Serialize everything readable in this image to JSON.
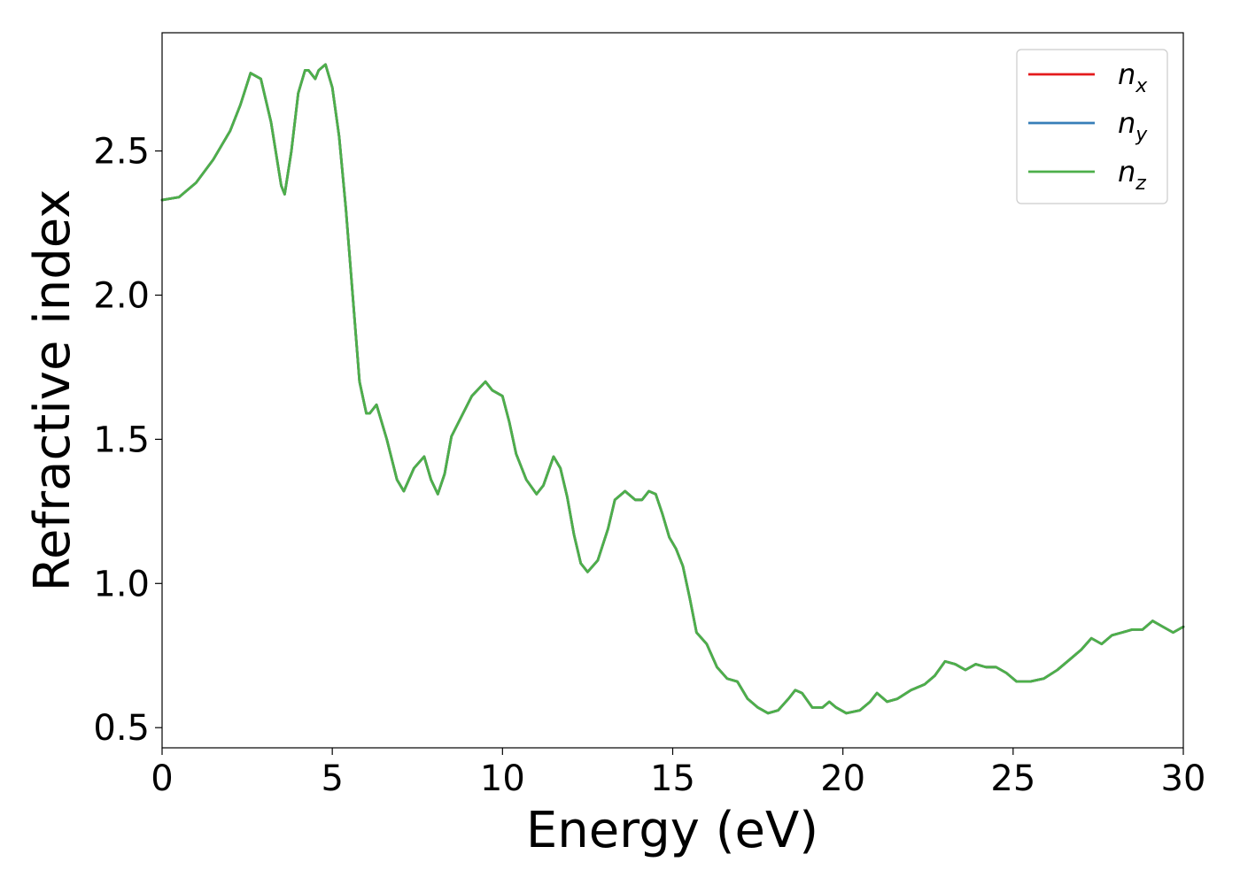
{
  "chart_data": {
    "type": "line",
    "xlabel": "Energy (eV)",
    "ylabel": "Refractive index",
    "xlim": [
      0,
      30
    ],
    "ylim": [
      0.43,
      2.91
    ],
    "xticks": [
      0,
      5,
      10,
      15,
      20,
      25,
      30
    ],
    "xtick_labels": [
      "0",
      "5",
      "10",
      "15",
      "20",
      "25",
      "30"
    ],
    "yticks": [
      0.5,
      1.0,
      1.5,
      2.0,
      2.5
    ],
    "ytick_labels": [
      "0.5",
      "1.0",
      "1.5",
      "2.0",
      "2.5"
    ],
    "grid": false,
    "legend_position": "top-right",
    "x": [
      0.0,
      0.5,
      1.0,
      1.5,
      2.0,
      2.3,
      2.6,
      2.9,
      3.2,
      3.5,
      3.6,
      3.8,
      4.0,
      4.2,
      4.3,
      4.5,
      4.6,
      4.8,
      5.0,
      5.2,
      5.4,
      5.6,
      5.8,
      6.0,
      6.1,
      6.3,
      6.6,
      6.9,
      7.1,
      7.4,
      7.7,
      7.9,
      8.1,
      8.3,
      8.5,
      8.8,
      9.1,
      9.5,
      9.7,
      10.0,
      10.2,
      10.4,
      10.7,
      11.0,
      11.2,
      11.5,
      11.7,
      11.9,
      12.1,
      12.3,
      12.5,
      12.8,
      13.1,
      13.3,
      13.6,
      13.9,
      14.1,
      14.3,
      14.5,
      14.7,
      14.9,
      15.1,
      15.3,
      15.5,
      15.7,
      16.0,
      16.3,
      16.6,
      16.9,
      17.2,
      17.5,
      17.8,
      18.1,
      18.4,
      18.6,
      18.8,
      19.1,
      19.4,
      19.6,
      19.8,
      20.1,
      20.5,
      20.8,
      21.0,
      21.3,
      21.6,
      22.0,
      22.4,
      22.7,
      23.0,
      23.3,
      23.6,
      23.9,
      24.2,
      24.5,
      24.8,
      25.1,
      25.5,
      25.9,
      26.3,
      26.7,
      27.0,
      27.3,
      27.6,
      27.9,
      28.2,
      28.5,
      28.8,
      29.1,
      29.4,
      29.7,
      30.0
    ],
    "series": [
      {
        "name": "n_x",
        "color": "#e41a1c",
        "values": [
          2.33,
          2.34,
          2.39,
          2.47,
          2.57,
          2.66,
          2.77,
          2.75,
          2.6,
          2.38,
          2.35,
          2.5,
          2.7,
          2.78,
          2.78,
          2.75,
          2.78,
          2.8,
          2.72,
          2.55,
          2.3,
          2.0,
          1.7,
          1.59,
          1.59,
          1.62,
          1.5,
          1.36,
          1.32,
          1.4,
          1.44,
          1.36,
          1.31,
          1.38,
          1.51,
          1.58,
          1.65,
          1.7,
          1.67,
          1.65,
          1.56,
          1.45,
          1.36,
          1.31,
          1.34,
          1.44,
          1.4,
          1.3,
          1.17,
          1.07,
          1.04,
          1.08,
          1.19,
          1.29,
          1.32,
          1.29,
          1.29,
          1.32,
          1.31,
          1.24,
          1.16,
          1.12,
          1.06,
          0.95,
          0.83,
          0.79,
          0.71,
          0.67,
          0.66,
          0.6,
          0.57,
          0.55,
          0.56,
          0.6,
          0.63,
          0.62,
          0.57,
          0.57,
          0.59,
          0.57,
          0.55,
          0.56,
          0.59,
          0.62,
          0.59,
          0.6,
          0.63,
          0.65,
          0.68,
          0.73,
          0.72,
          0.7,
          0.72,
          0.71,
          0.71,
          0.69,
          0.66,
          0.66,
          0.67,
          0.7,
          0.74,
          0.77,
          0.81,
          0.79,
          0.82,
          0.83,
          0.84,
          0.84,
          0.87,
          0.85,
          0.83,
          0.85
        ]
      },
      {
        "name": "n_y",
        "color": "#377eb8",
        "values": [
          2.33,
          2.34,
          2.39,
          2.47,
          2.57,
          2.66,
          2.77,
          2.75,
          2.6,
          2.38,
          2.35,
          2.5,
          2.7,
          2.78,
          2.78,
          2.75,
          2.78,
          2.8,
          2.72,
          2.55,
          2.3,
          2.0,
          1.7,
          1.59,
          1.59,
          1.62,
          1.5,
          1.36,
          1.32,
          1.4,
          1.44,
          1.36,
          1.31,
          1.38,
          1.51,
          1.58,
          1.65,
          1.7,
          1.67,
          1.65,
          1.56,
          1.45,
          1.36,
          1.31,
          1.34,
          1.44,
          1.4,
          1.3,
          1.17,
          1.07,
          1.04,
          1.08,
          1.19,
          1.29,
          1.32,
          1.29,
          1.29,
          1.32,
          1.31,
          1.24,
          1.16,
          1.12,
          1.06,
          0.95,
          0.83,
          0.79,
          0.71,
          0.67,
          0.66,
          0.6,
          0.57,
          0.55,
          0.56,
          0.6,
          0.63,
          0.62,
          0.57,
          0.57,
          0.59,
          0.57,
          0.55,
          0.56,
          0.59,
          0.62,
          0.59,
          0.6,
          0.63,
          0.65,
          0.68,
          0.73,
          0.72,
          0.7,
          0.72,
          0.71,
          0.71,
          0.69,
          0.66,
          0.66,
          0.67,
          0.7,
          0.74,
          0.77,
          0.81,
          0.79,
          0.82,
          0.83,
          0.84,
          0.84,
          0.87,
          0.85,
          0.83,
          0.85
        ]
      },
      {
        "name": "n_z",
        "color": "#4daf4a",
        "values": [
          2.33,
          2.34,
          2.39,
          2.47,
          2.57,
          2.66,
          2.77,
          2.75,
          2.6,
          2.38,
          2.35,
          2.5,
          2.7,
          2.78,
          2.78,
          2.75,
          2.78,
          2.8,
          2.72,
          2.55,
          2.3,
          2.0,
          1.7,
          1.59,
          1.59,
          1.62,
          1.5,
          1.36,
          1.32,
          1.4,
          1.44,
          1.36,
          1.31,
          1.38,
          1.51,
          1.58,
          1.65,
          1.7,
          1.67,
          1.65,
          1.56,
          1.45,
          1.36,
          1.31,
          1.34,
          1.44,
          1.4,
          1.3,
          1.17,
          1.07,
          1.04,
          1.08,
          1.19,
          1.29,
          1.32,
          1.29,
          1.29,
          1.32,
          1.31,
          1.24,
          1.16,
          1.12,
          1.06,
          0.95,
          0.83,
          0.79,
          0.71,
          0.67,
          0.66,
          0.6,
          0.57,
          0.55,
          0.56,
          0.6,
          0.63,
          0.62,
          0.57,
          0.57,
          0.59,
          0.57,
          0.55,
          0.56,
          0.59,
          0.62,
          0.59,
          0.6,
          0.63,
          0.65,
          0.68,
          0.73,
          0.72,
          0.7,
          0.72,
          0.71,
          0.71,
          0.69,
          0.66,
          0.66,
          0.67,
          0.7,
          0.74,
          0.77,
          0.81,
          0.79,
          0.82,
          0.83,
          0.84,
          0.84,
          0.87,
          0.85,
          0.83,
          0.85
        ]
      }
    ],
    "legend": [
      {
        "base": "n",
        "sub": "x",
        "color": "#e41a1c"
      },
      {
        "base": "n",
        "sub": "y",
        "color": "#377eb8"
      },
      {
        "base": "n",
        "sub": "z",
        "color": "#4daf4a"
      }
    ]
  }
}
